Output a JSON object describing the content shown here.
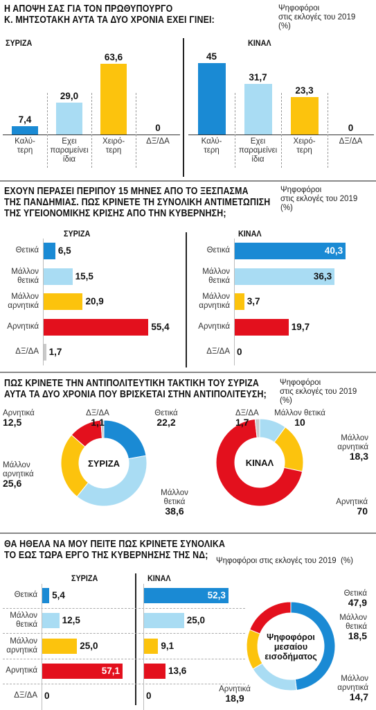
{
  "sections": [
    {
      "title_1": "Η ΑΠΟΨΗ ΣΑΣ ΓΙΑ ΤΟΝ ΠΡΩΘΥΠΟΥΡΓΟ",
      "title_2": "Κ. ΜΗΤΣΟΤΑΚΗ ΑΥΤΑ ΤΑ ΔΥΟ ΧΡΟΝΙΑ ΕΧΕΙ ΓΙΝΕΙ:",
      "note_1": "Ψηφοφόροι",
      "note_2": "στις εκλογές του 2019",
      "note_3": "(%)"
    },
    {
      "title_1": "ΕΧΟΥΝ ΠΕΡΑΣΕΙ ΠΕΡΙΠΟΥ 15 ΜΗΝΕΣ ΑΠΟ ΤΟ ΞΕΣΠΑΣΜΑ",
      "title_2": "ΤΗΣ ΠΑΝΔΗΜΙΑΣ. ΠΩΣ ΚΡΙΝΕΤΕ ΤΗ ΣΥΝΟΛΙΚΗ ΑΝΤΙΜΕΤΩΠΙΣΗ",
      "title_3": "ΤΗΣ ΥΓΕΙΟΝΟΜΙΚΗΣ ΚΡΙΣΗΣ ΑΠΟ ΤΗΝ ΚΥΒΕΡΝΗΣΗ;",
      "note_1": "Ψηφοφόροι",
      "note_2": "στις εκλογές του 2019",
      "note_3": "(%)"
    },
    {
      "title_1": "ΠΩΣ ΚΡΙΝΕΤΕ ΤΗΝ ΑΝΤΙΠΟΛΙΤΕΥΤΙΚΗ ΤΑΚΤΙΚΗ ΤΟΥ ΣΥΡΙΖΑ",
      "title_2": "ΑΥΤΑ ΤΑ ΔΥΟ ΧΡΟΝΙΑ ΠΟΥ ΒΡΙΣΚΕΤΑΙ ΣΤΗΝ ΑΝΤΙΠΟΛΙΤΕΥΣΗ;",
      "note_1": "Ψηφοφόροι",
      "note_2": "στις εκλογές του 2019",
      "note_3": "(%)"
    },
    {
      "title_1": "ΘΑ ΗΘΕΛΑ ΝΑ ΜΟΥ ΠΕΙΤΕ ΠΩΣ ΚΡΙΝΕΤΕ ΣΥΝΟΛΙΚΑ",
      "title_2": "ΤΟ ΕΩΣ ΤΩΡΑ ΕΡΓΟ ΤΗΣ ΚΥΒΕΡΝΗΣΗΣ ΤΗΣ ΝΔ;",
      "note_1": "Ψηφοφόροι στις εκλογές του 2019",
      "note_3": "(%)"
    }
  ],
  "colors": {
    "blue": "#1a8ad4",
    "light_blue": "#a9dcf3",
    "yellow": "#fcc30d",
    "red": "#e3101d",
    "grey": "#c9c9c9"
  },
  "chart_data": [
    {
      "type": "bar",
      "panel": "ΣΥΡΙΖΑ",
      "categories": [
        "Καλύ-\nτερη",
        "Εχει\nπαραμείνει\nίδια",
        "Χειρό-\nτερη",
        "ΔΞ/ΔΑ"
      ],
      "values": [
        7.4,
        29.0,
        63.6,
        0
      ],
      "labels": [
        "7,4",
        "29,0",
        "63,6",
        "0"
      ]
    },
    {
      "type": "bar",
      "panel": "ΚΙΝΑΛ",
      "categories": [
        "Καλύ-\nτερη",
        "Εχει\nπαραμείνει\nίδια",
        "Χειρό-\nτερη",
        "ΔΞ/ΔΑ"
      ],
      "values": [
        45,
        31.7,
        23.3,
        0
      ],
      "labels": [
        "45",
        "31,7",
        "23,3",
        "0"
      ]
    },
    {
      "type": "bar",
      "orientation": "horizontal",
      "panel": "ΣΥΡΙΖΑ",
      "categories": [
        "Θετικά",
        "Μάλλον\nθετικά",
        "Μάλλον\nαρνητικά",
        "Αρνητικά",
        "ΔΞ/ΔΑ"
      ],
      "values": [
        6.5,
        15.5,
        20.9,
        55.4,
        1.7
      ],
      "labels": [
        "6,5",
        "15,5",
        "20,9",
        "55,4",
        "1,7"
      ]
    },
    {
      "type": "bar",
      "orientation": "horizontal",
      "panel": "ΚΙΝΑΛ",
      "categories": [
        "Θετικά",
        "Μάλλον\nθετικά",
        "Μάλλον\nαρνητικά",
        "Αρνητικά",
        "ΔΞ/ΔΑ"
      ],
      "values": [
        40.3,
        36.3,
        3.7,
        19.7,
        0
      ],
      "labels": [
        "40,3",
        "36,3",
        "3,7",
        "19,7",
        "0"
      ]
    },
    {
      "type": "pie",
      "panel": "ΣΥΡΙΖΑ",
      "center_label": "ΣΥΡΙΖΑ",
      "categories": [
        "Θετικά",
        "Μάλλον θετικά",
        "Μάλλον αρνητικά",
        "Αρνητικά",
        "ΔΞ/ΔΑ"
      ],
      "values": [
        22.2,
        38.6,
        25.6,
        12.5,
        1.1
      ],
      "labels": [
        "22,2",
        "38,6",
        "25,6",
        "12,5",
        "1,1"
      ]
    },
    {
      "type": "pie",
      "panel": "ΚΙΝΑΛ",
      "center_label": "ΚΙΝΑΛ",
      "categories": [
        "Μάλλον θετικά",
        "Μάλλον αρνητικά",
        "Αρνητικά",
        "ΔΞ/ΔΑ"
      ],
      "values": [
        10,
        18.3,
        70,
        1.7
      ],
      "labels": [
        "10",
        "18,3",
        "70",
        "1,7"
      ]
    },
    {
      "type": "bar",
      "orientation": "horizontal",
      "panel": "ΣΥΡΙΖΑ",
      "categories": [
        "Θετικά",
        "Μάλλον\nθετικά",
        "Μάλλον\nαρνητικά",
        "Αρνητικά",
        "ΔΞ/ΔΑ"
      ],
      "values": [
        5.4,
        12.5,
        25.0,
        57.1,
        0
      ],
      "labels": [
        "5,4",
        "12,5",
        "25,0",
        "57,1",
        "0"
      ]
    },
    {
      "type": "bar",
      "orientation": "horizontal",
      "panel": "ΚΙΝΑΛ",
      "categories": [
        "Θετικά",
        "Μάλλον\nθετικά",
        "Μάλλον\nαρνητικά",
        "Αρνητικά",
        "ΔΞ/ΔΑ"
      ],
      "values": [
        52.3,
        25.0,
        9.1,
        13.6,
        0
      ],
      "labels": [
        "52,3",
        "25,0",
        "9,1",
        "13,6",
        "0"
      ]
    },
    {
      "type": "pie",
      "panel": "Ψηφοφόροι μεσαίου εισοδήματος",
      "center_label": "Ψηφοφόροι\nμεσαίου\nεισοδήματος",
      "categories": [
        "Θετικά",
        "Μάλλον θετικά",
        "Μάλλον αρνητικά",
        "Αρνητικά"
      ],
      "values": [
        47.9,
        18.5,
        14.7,
        18.9
      ],
      "labels": [
        "47,9",
        "18,5",
        "14,7",
        "18,9"
      ]
    }
  ]
}
